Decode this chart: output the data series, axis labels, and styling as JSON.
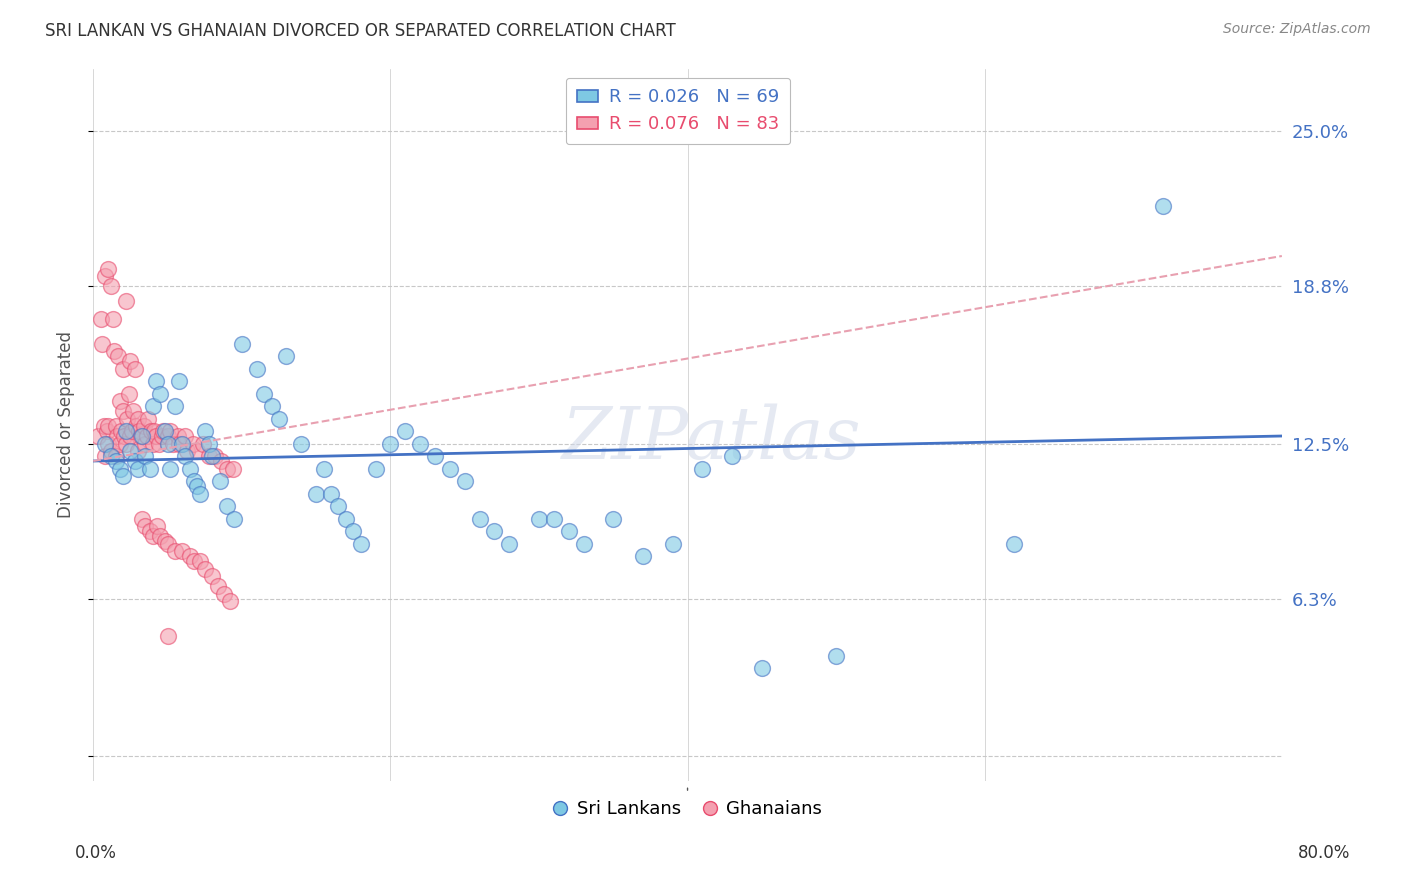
{
  "title": "SRI LANKAN VS GHANAIAN DIVORCED OR SEPARATED CORRELATION CHART",
  "source": "Source: ZipAtlas.com",
  "ylabel": "Divorced or Separated",
  "yticks": [
    0.0,
    0.063,
    0.125,
    0.188,
    0.25
  ],
  "ytick_labels": [
    "",
    "6.3%",
    "12.5%",
    "18.8%",
    "25.0%"
  ],
  "xlim": [
    0.0,
    0.8
  ],
  "ylim": [
    -0.01,
    0.275
  ],
  "legend_R1": "R = 0.026",
  "legend_N1": "N = 69",
  "legend_R2": "R = 0.076",
  "legend_N2": "N = 83",
  "series1_label": "Sri Lankans",
  "series2_label": "Ghanaians",
  "series1_color": "#7ec8e3",
  "series2_color": "#f4a0b0",
  "series1_edge_color": "#4472c4",
  "series2_edge_color": "#e84c6e",
  "trend1_color": "#4472c4",
  "trend2_color": "#e8a0b0",
  "watermark_text": "ZIPatlas",
  "sri_lankans_x": [
    0.008,
    0.012,
    0.015,
    0.018,
    0.02,
    0.022,
    0.025,
    0.028,
    0.03,
    0.033,
    0.035,
    0.038,
    0.04,
    0.042,
    0.045,
    0.048,
    0.05,
    0.052,
    0.055,
    0.058,
    0.06,
    0.062,
    0.065,
    0.068,
    0.07,
    0.072,
    0.075,
    0.078,
    0.08,
    0.085,
    0.09,
    0.095,
    0.1,
    0.11,
    0.115,
    0.12,
    0.125,
    0.13,
    0.14,
    0.15,
    0.155,
    0.16,
    0.165,
    0.17,
    0.175,
    0.18,
    0.19,
    0.2,
    0.21,
    0.22,
    0.23,
    0.24,
    0.25,
    0.26,
    0.27,
    0.28,
    0.3,
    0.31,
    0.32,
    0.33,
    0.35,
    0.37,
    0.39,
    0.41,
    0.43,
    0.45,
    0.5,
    0.62,
    0.72
  ],
  "sri_lankans_y": [
    0.125,
    0.12,
    0.118,
    0.115,
    0.112,
    0.13,
    0.122,
    0.118,
    0.115,
    0.128,
    0.12,
    0.115,
    0.14,
    0.15,
    0.145,
    0.13,
    0.125,
    0.115,
    0.14,
    0.15,
    0.125,
    0.12,
    0.115,
    0.11,
    0.108,
    0.105,
    0.13,
    0.125,
    0.12,
    0.11,
    0.1,
    0.095,
    0.165,
    0.155,
    0.145,
    0.14,
    0.135,
    0.16,
    0.125,
    0.105,
    0.115,
    0.105,
    0.1,
    0.095,
    0.09,
    0.085,
    0.115,
    0.125,
    0.13,
    0.125,
    0.12,
    0.115,
    0.11,
    0.095,
    0.09,
    0.085,
    0.095,
    0.095,
    0.09,
    0.085,
    0.095,
    0.08,
    0.085,
    0.115,
    0.12,
    0.035,
    0.04,
    0.085,
    0.22
  ],
  "ghanaians_x": [
    0.003,
    0.005,
    0.006,
    0.007,
    0.008,
    0.008,
    0.009,
    0.01,
    0.01,
    0.01,
    0.012,
    0.012,
    0.013,
    0.014,
    0.015,
    0.015,
    0.016,
    0.017,
    0.018,
    0.018,
    0.019,
    0.02,
    0.02,
    0.021,
    0.022,
    0.022,
    0.023,
    0.024,
    0.025,
    0.025,
    0.026,
    0.027,
    0.028,
    0.029,
    0.03,
    0.03,
    0.031,
    0.032,
    0.033,
    0.034,
    0.035,
    0.035,
    0.036,
    0.037,
    0.038,
    0.039,
    0.04,
    0.04,
    0.041,
    0.042,
    0.043,
    0.044,
    0.045,
    0.046,
    0.047,
    0.048,
    0.05,
    0.05,
    0.052,
    0.054,
    0.055,
    0.057,
    0.058,
    0.06,
    0.062,
    0.063,
    0.065,
    0.067,
    0.068,
    0.07,
    0.072,
    0.074,
    0.075,
    0.078,
    0.08,
    0.082,
    0.084,
    0.086,
    0.088,
    0.09,
    0.092,
    0.094,
    0.05
  ],
  "ghanaians_y": [
    0.128,
    0.175,
    0.165,
    0.132,
    0.192,
    0.12,
    0.13,
    0.195,
    0.132,
    0.125,
    0.188,
    0.122,
    0.175,
    0.162,
    0.132,
    0.12,
    0.128,
    0.16,
    0.142,
    0.125,
    0.13,
    0.155,
    0.138,
    0.128,
    0.182,
    0.125,
    0.135,
    0.145,
    0.158,
    0.128,
    0.13,
    0.138,
    0.155,
    0.132,
    0.135,
    0.122,
    0.13,
    0.128,
    0.095,
    0.132,
    0.125,
    0.092,
    0.128,
    0.135,
    0.09,
    0.13,
    0.125,
    0.088,
    0.13,
    0.128,
    0.092,
    0.125,
    0.088,
    0.128,
    0.13,
    0.086,
    0.128,
    0.085,
    0.13,
    0.125,
    0.082,
    0.128,
    0.125,
    0.082,
    0.128,
    0.122,
    0.08,
    0.125,
    0.078,
    0.122,
    0.078,
    0.125,
    0.075,
    0.12,
    0.072,
    0.12,
    0.068,
    0.118,
    0.065,
    0.115,
    0.062,
    0.115,
    0.048
  ],
  "trend1_x_start": 0.0,
  "trend1_x_end": 0.8,
  "trend1_y_start": 0.118,
  "trend1_y_end": 0.128,
  "trend2_x_start": 0.0,
  "trend2_x_end": 0.8,
  "trend2_y_start": 0.118,
  "trend2_y_end": 0.2
}
